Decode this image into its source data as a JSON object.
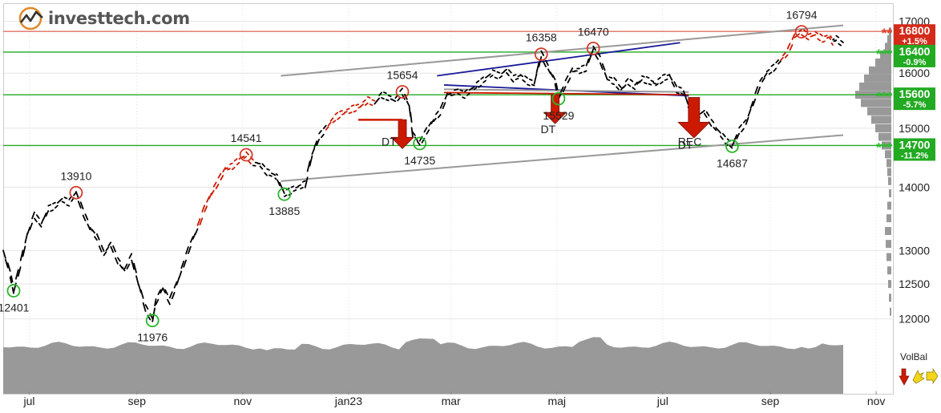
{
  "brand": {
    "name": "investtech.com"
  },
  "colors": {
    "price_normal": "#000000",
    "price_highlight": "#cc1a00",
    "resistance": "#e07060",
    "support": "#22aa22",
    "trend_channel": "#999999",
    "trend_blue": "#1a1a99",
    "volume": "#999999",
    "signal_arrow": "#cc1a00"
  },
  "chart_data": {
    "type": "line",
    "yscale": "log",
    "ylim": [
      11750,
      17300
    ],
    "x_ticks": [
      {
        "label": "jul",
        "day": 15
      },
      {
        "label": "sep",
        "day": 77
      },
      {
        "label": "nov",
        "day": 138
      },
      {
        "label": "jan23",
        "day": 199
      },
      {
        "label": "mar",
        "day": 258
      },
      {
        "label": "maj",
        "day": 319
      },
      {
        "label": "jul",
        "day": 380
      },
      {
        "label": "sep",
        "day": 442
      },
      {
        "label": "nov",
        "day": 503
      }
    ],
    "y_ticks": [
      "17000",
      "16000",
      "15000",
      "14000",
      "13000",
      "12500",
      "12000"
    ],
    "series": [
      {
        "points": [
          [
            0,
            13000
          ],
          [
            4,
            12650
          ],
          [
            6,
            12401
          ],
          [
            10,
            12800
          ],
          [
            14,
            13250
          ],
          [
            18,
            13550
          ],
          [
            22,
            13400
          ],
          [
            26,
            13650
          ],
          [
            30,
            13700
          ],
          [
            34,
            13800
          ],
          [
            38,
            13750
          ],
          [
            42,
            13910
          ],
          [
            46,
            13600
          ],
          [
            50,
            13350
          ],
          [
            54,
            13200
          ],
          [
            58,
            12950
          ],
          [
            62,
            13100
          ],
          [
            66,
            12850
          ],
          [
            70,
            12700
          ],
          [
            74,
            12900
          ],
          [
            78,
            12500
          ],
          [
            82,
            12150
          ],
          [
            86,
            11976
          ],
          [
            88,
            12250
          ],
          [
            92,
            12450
          ],
          [
            96,
            12250
          ],
          [
            100,
            12500
          ],
          [
            104,
            12800
          ],
          [
            108,
            13100
          ],
          [
            112,
            13350
          ],
          [
            116,
            13650
          ],
          [
            120,
            13900
          ],
          [
            124,
            14100
          ],
          [
            128,
            14300
          ],
          [
            132,
            14350
          ],
          [
            136,
            14450
          ],
          [
            140,
            14541
          ],
          [
            144,
            14400
          ],
          [
            148,
            14380
          ],
          [
            152,
            14250
          ],
          [
            156,
            14200
          ],
          [
            158,
            14150
          ],
          [
            162,
            13885
          ],
          [
            166,
            13950
          ],
          [
            170,
            14000
          ],
          [
            174,
            14050
          ],
          [
            178,
            14550
          ],
          [
            182,
            14850
          ],
          [
            186,
            15000
          ],
          [
            190,
            15150
          ],
          [
            194,
            15250
          ],
          [
            198,
            15300
          ],
          [
            202,
            15350
          ],
          [
            206,
            15400
          ],
          [
            210,
            15500
          ],
          [
            214,
            15450
          ],
          [
            218,
            15600
          ],
          [
            222,
            15550
          ],
          [
            226,
            15500
          ],
          [
            230,
            15654
          ],
          [
            234,
            15400
          ],
          [
            236,
            14900
          ],
          [
            240,
            14735
          ],
          [
            244,
            14950
          ],
          [
            248,
            15150
          ],
          [
            252,
            15300
          ],
          [
            256,
            15600
          ],
          [
            262,
            15650
          ],
          [
            266,
            15600
          ],
          [
            270,
            15700
          ],
          [
            274,
            15800
          ],
          [
            278,
            15900
          ],
          [
            282,
            16000
          ],
          [
            286,
            15950
          ],
          [
            290,
            16050
          ],
          [
            294,
            15900
          ],
          [
            298,
            15950
          ],
          [
            302,
            15850
          ],
          [
            306,
            15800
          ],
          [
            310,
            16358
          ],
          [
            314,
            16100
          ],
          [
            318,
            15850
          ],
          [
            320,
            15529
          ],
          [
            324,
            15800
          ],
          [
            328,
            16050
          ],
          [
            332,
            16050
          ],
          [
            336,
            16100
          ],
          [
            340,
            16470
          ],
          [
            344,
            16250
          ],
          [
            348,
            15900
          ],
          [
            352,
            15850
          ],
          [
            356,
            15700
          ],
          [
            360,
            15850
          ],
          [
            364,
            15750
          ],
          [
            368,
            15900
          ],
          [
            372,
            15850
          ],
          [
            376,
            15800
          ],
          [
            380,
            15900
          ],
          [
            384,
            15950
          ],
          [
            388,
            15700
          ],
          [
            392,
            15650
          ],
          [
            396,
            15300
          ],
          [
            400,
            15200
          ],
          [
            404,
            15300
          ],
          [
            408,
            15100
          ],
          [
            412,
            14950
          ],
          [
            416,
            14800
          ],
          [
            420,
            14687
          ],
          [
            424,
            14950
          ],
          [
            428,
            15100
          ],
          [
            432,
            15450
          ],
          [
            436,
            15800
          ],
          [
            440,
            16000
          ],
          [
            444,
            16100
          ],
          [
            448,
            16250
          ],
          [
            452,
            16400
          ],
          [
            456,
            16700
          ],
          [
            460,
            16794
          ],
          [
            464,
            16700
          ],
          [
            468,
            16750
          ],
          [
            472,
            16650
          ],
          [
            476,
            16700
          ],
          [
            478,
            16600
          ],
          [
            480,
            16650
          ],
          [
            484,
            16550
          ]
        ]
      }
    ],
    "levels": [
      {
        "value": 16800,
        "label": "16800",
        "change": "+1.5%",
        "stars": "**",
        "kind": "resistance"
      },
      {
        "value": 16400,
        "label": "16400",
        "change": "-0.9%",
        "stars": "***",
        "kind": "support"
      },
      {
        "value": 15600,
        "label": "15600",
        "change": "-5.7%",
        "stars": "***",
        "kind": "support"
      },
      {
        "value": 14700,
        "label": "14700",
        "change": "-11.2%",
        "stars": "***",
        "kind": "support"
      }
    ],
    "extrema": [
      {
        "day": 6,
        "value": 12401,
        "kind": "low",
        "label": "12401"
      },
      {
        "day": 42,
        "value": 13910,
        "kind": "high",
        "label": "13910"
      },
      {
        "day": 86,
        "value": 11976,
        "kind": "low",
        "label": "11976"
      },
      {
        "day": 140,
        "value": 14541,
        "kind": "high",
        "label": "14541"
      },
      {
        "day": 162,
        "value": 13885,
        "kind": "low",
        "label": "13885"
      },
      {
        "day": 230,
        "value": 15654,
        "kind": "high",
        "label": "15654"
      },
      {
        "day": 240,
        "value": 14735,
        "kind": "low",
        "label": "14735"
      },
      {
        "day": 310,
        "value": 16358,
        "kind": "high",
        "label": "16358"
      },
      {
        "day": 320,
        "value": 15529,
        "kind": "low",
        "label": "15529"
      },
      {
        "day": 340,
        "value": 16470,
        "kind": "high",
        "label": "16470"
      },
      {
        "day": 420,
        "value": 14687,
        "kind": "low",
        "label": "14687"
      },
      {
        "day": 460,
        "value": 16794,
        "kind": "high",
        "label": "16794"
      }
    ],
    "signals": [
      {
        "day": 230,
        "value": 15150,
        "label": "DT"
      },
      {
        "day": 318,
        "value": 15600,
        "label": "DT"
      },
      {
        "day": 398,
        "value": 15550,
        "label": "REC"
      },
      {
        "day": 398,
        "value": 15550,
        "label": "DT"
      }
    ],
    "trend_lines": [
      {
        "color": "gray",
        "from": [
          160,
          14100
        ],
        "to": [
          484,
          14880
        ]
      },
      {
        "color": "gray",
        "from": [
          160,
          15950
        ],
        "to": [
          484,
          16920
        ]
      },
      {
        "color": "blue",
        "from": [
          250,
          15950
        ],
        "to": [
          390,
          16580
        ]
      },
      {
        "color": "blue",
        "from": [
          254,
          15780
        ],
        "to": [
          395,
          15580
        ]
      },
      {
        "color": "red",
        "from": [
          254,
          15640
        ],
        "to": [
          395,
          15600
        ]
      },
      {
        "color": "gray",
        "from": [
          254,
          15700
        ],
        "to": [
          395,
          15650
        ]
      }
    ],
    "volume_profile": [
      [
        16800,
        3
      ],
      [
        16650,
        5
      ],
      [
        16500,
        8
      ],
      [
        16350,
        14
      ],
      [
        16200,
        20
      ],
      [
        16050,
        28
      ],
      [
        15900,
        34
      ],
      [
        15750,
        40
      ],
      [
        15600,
        45
      ],
      [
        15450,
        38
      ],
      [
        15300,
        30
      ],
      [
        15150,
        25
      ],
      [
        15000,
        20
      ],
      [
        14850,
        16
      ],
      [
        14700,
        12
      ],
      [
        14550,
        8
      ],
      [
        14400,
        6
      ],
      [
        14250,
        5
      ],
      [
        14100,
        4
      ],
      [
        13900,
        3
      ],
      [
        13700,
        5
      ],
      [
        13500,
        6
      ],
      [
        13300,
        8
      ],
      [
        13100,
        7
      ],
      [
        12900,
        6
      ],
      [
        12700,
        5
      ],
      [
        12500,
        4
      ],
      [
        12300,
        3
      ],
      [
        12100,
        2
      ]
    ],
    "volume_balance_label": "VolBal"
  }
}
